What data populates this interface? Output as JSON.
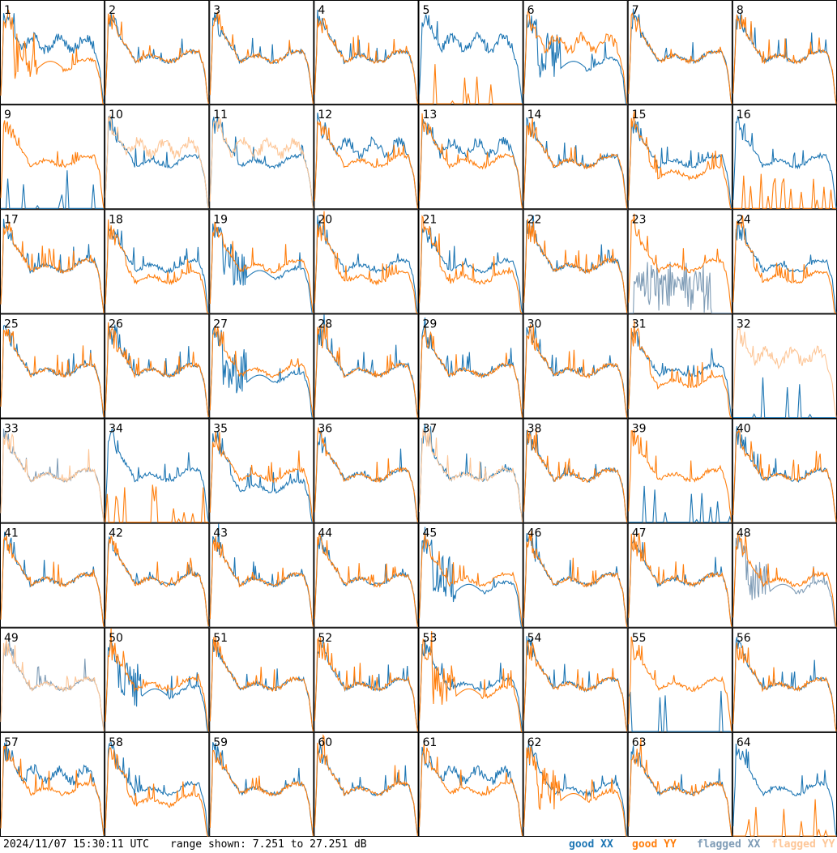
{
  "chart_data": {
    "type": "line",
    "layout": "8x8 grid of small multiples",
    "grid": false,
    "timestamp": "2024/11/07 15:30:11 UTC",
    "range_text": "range shown: 7.251 to 27.251 dB",
    "ylim": [
      7.251,
      27.251
    ],
    "legend": {
      "placement": "bottom-right",
      "entries": [
        {
          "text": "good XX",
          "prefix": "good ",
          "pol": "XX",
          "color": "#1f77b4"
        },
        {
          "text": "good YY",
          "prefix": "good ",
          "pol": "YY",
          "color": "#ff7f0e"
        },
        {
          "text": "flagged XX",
          "prefix": "flagged ",
          "pol": "XX",
          "color": "#7f9cb6"
        },
        {
          "text": "flagged YY",
          "prefix": "flagged ",
          "pol": "YY",
          "color": "#fdc697"
        }
      ]
    },
    "colors": {
      "good_xx": "#1f77b4",
      "good_yy": "#ff7f0e",
      "flagged_xx": "#7f9cb6",
      "flagged_yy": "#fdc697"
    },
    "panels": [
      {
        "id": "1",
        "xx": "weird",
        "yy": "bad",
        "yyflag": false,
        "xxflag": false
      },
      {
        "id": "2",
        "xx": "normal",
        "yy": "normal"
      },
      {
        "id": "3",
        "xx": "normal",
        "yy": "normal"
      },
      {
        "id": "4",
        "xx": "normal",
        "yy": "normal"
      },
      {
        "id": "5",
        "xx": "weird",
        "yy": "dead"
      },
      {
        "id": "6",
        "xx": "bad",
        "yy": "weird"
      },
      {
        "id": "7",
        "xx": "normal",
        "yy": "normal"
      },
      {
        "id": "8",
        "xx": "normal",
        "yy": "normal"
      },
      {
        "id": "9",
        "xx": "dead",
        "yy": "normal"
      },
      {
        "id": "10",
        "xx": "normal",
        "yy": "weird",
        "yyflag": true
      },
      {
        "id": "11",
        "xx": "normal",
        "yy": "weird",
        "yyflag": true
      },
      {
        "id": "12",
        "xx": "weird",
        "yy": "normal"
      },
      {
        "id": "13",
        "xx": "weird",
        "yy": "normal"
      },
      {
        "id": "14",
        "xx": "normal",
        "yy": "normal"
      },
      {
        "id": "15",
        "xx": "normal",
        "yy": "low"
      },
      {
        "id": "16",
        "xx": "normal",
        "yy": "dead"
      },
      {
        "id": "17",
        "xx": "normal",
        "yy": "normal"
      },
      {
        "id": "18",
        "xx": "normal",
        "yy": "low"
      },
      {
        "id": "19",
        "xx": "bad",
        "yy": "normal"
      },
      {
        "id": "20",
        "xx": "normal",
        "yy": "low"
      },
      {
        "id": "21",
        "xx": "normal",
        "yy": "low"
      },
      {
        "id": "22",
        "xx": "normal",
        "yy": "normal"
      },
      {
        "id": "23",
        "xx": "noise",
        "yy": "normal",
        "xxflag": true
      },
      {
        "id": "24",
        "xx": "normal",
        "yy": "low"
      },
      {
        "id": "25",
        "xx": "normal",
        "yy": "normal"
      },
      {
        "id": "26",
        "xx": "normal",
        "yy": "normal"
      },
      {
        "id": "27",
        "xx": "bad",
        "yy": "normal"
      },
      {
        "id": "28",
        "xx": "normal",
        "yy": "normal"
      },
      {
        "id": "29",
        "xx": "normal",
        "yy": "normal"
      },
      {
        "id": "30",
        "xx": "normal",
        "yy": "normal"
      },
      {
        "id": "31",
        "xx": "normal",
        "yy": "low"
      },
      {
        "id": "32",
        "xx": "dead",
        "yy": "weird",
        "yyflag": true
      },
      {
        "id": "33",
        "xx": "normal",
        "yy": "normal",
        "xxflag": true,
        "yyflag": true
      },
      {
        "id": "34",
        "xx": "normal",
        "yy": "dead"
      },
      {
        "id": "35",
        "xx": "low",
        "yy": "normal"
      },
      {
        "id": "36",
        "xx": "normal",
        "yy": "normal"
      },
      {
        "id": "37",
        "xx": "normal",
        "yy": "normal",
        "yyflag": true
      },
      {
        "id": "38",
        "xx": "normal",
        "yy": "normal"
      },
      {
        "id": "39",
        "xx": "dead",
        "yy": "normal"
      },
      {
        "id": "40",
        "xx": "normal",
        "yy": "normal"
      },
      {
        "id": "41",
        "xx": "normal",
        "yy": "normal"
      },
      {
        "id": "42",
        "xx": "normal",
        "yy": "normal"
      },
      {
        "id": "43",
        "xx": "normal",
        "yy": "normal"
      },
      {
        "id": "44",
        "xx": "normal",
        "yy": "normal"
      },
      {
        "id": "45",
        "xx": "bad",
        "yy": "normal"
      },
      {
        "id": "46",
        "xx": "normal",
        "yy": "normal"
      },
      {
        "id": "47",
        "xx": "normal",
        "yy": "normal"
      },
      {
        "id": "48",
        "xx": "bad",
        "yy": "normal",
        "xxflag": true
      },
      {
        "id": "49",
        "xx": "normal",
        "yy": "normal",
        "xxflag": true,
        "yyflag": true
      },
      {
        "id": "50",
        "xx": "bad",
        "yy": "normal"
      },
      {
        "id": "51",
        "xx": "normal",
        "yy": "normal"
      },
      {
        "id": "52",
        "xx": "normal",
        "yy": "normal"
      },
      {
        "id": "53",
        "xx": "normal",
        "yy": "bad"
      },
      {
        "id": "54",
        "xx": "normal",
        "yy": "normal"
      },
      {
        "id": "55",
        "xx": "dead",
        "yy": "normal"
      },
      {
        "id": "56",
        "xx": "normal",
        "yy": "normal"
      },
      {
        "id": "57",
        "xx": "weird",
        "yy": "normal"
      },
      {
        "id": "58",
        "xx": "normal",
        "yy": "low"
      },
      {
        "id": "59",
        "xx": "normal",
        "yy": "normal"
      },
      {
        "id": "60",
        "xx": "normal",
        "yy": "normal"
      },
      {
        "id": "61",
        "xx": "weird",
        "yy": "normal"
      },
      {
        "id": "62",
        "xx": "normal",
        "yy": "bad"
      },
      {
        "id": "63",
        "xx": "normal",
        "yy": "normal"
      },
      {
        "id": "64",
        "xx": "normal",
        "yy": "dead"
      }
    ]
  }
}
